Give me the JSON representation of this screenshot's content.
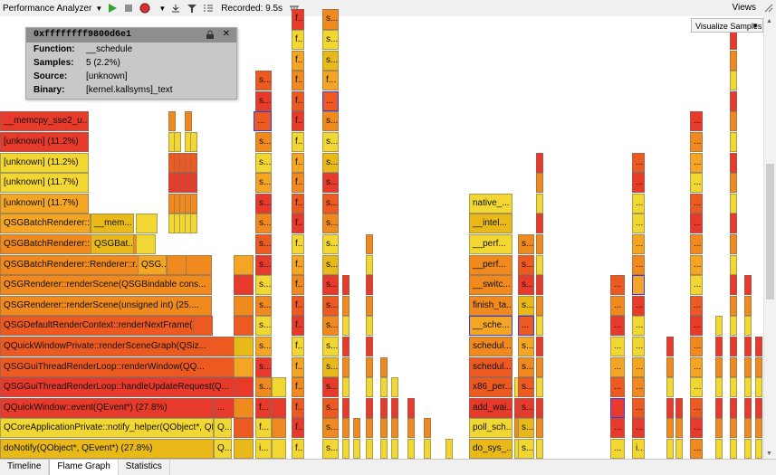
{
  "toolbar": {
    "title": "Performance Analyzer",
    "recorded": "Recorded: 9.5s",
    "views": "Views"
  },
  "colors": {
    "red": "#e83a2a",
    "orange_red": "#ec5a22",
    "orange": "#f08a1e",
    "orange_light": "#f4a524",
    "yellow": "#f2d733",
    "yellow_gold": "#e8b919",
    "tooltip_bg": "#c8c8c8",
    "selection": "#3b3bdc"
  },
  "tooltip": {
    "address": "0xffffffff9800d6e1",
    "rows": [
      {
        "key": "Function:",
        "value": "__schedule"
      },
      {
        "key": "Samples:",
        "value": "5 (2.2%)"
      },
      {
        "key": "Source:",
        "value": "[unknown]"
      },
      {
        "key": "Binary:",
        "value": "[kernel.kallsyms]_text"
      }
    ]
  },
  "visualize_button": "Visualize Samples",
  "left_column": [
    {
      "label": "__memcpy_sse2_u..."
    },
    {
      "label": "[unknown] (11.2%)"
    },
    {
      "label": "[unknown] (11.2%)"
    },
    {
      "label": "[unknown] (11.7%)"
    },
    {
      "label": "[unknown] (11.7%)"
    },
    {
      "label": "QSGBatchRenderer::..."
    },
    {
      "label": "QSGBatchRenderer::..."
    },
    {
      "label": "QSGBatchRenderer::Renderer::r..."
    },
    {
      "label": "QSGRenderer::renderScene(QSGBindable cons..."
    },
    {
      "label": "QSGRenderer::renderScene(unsigned int) (25...."
    },
    {
      "label": "QSGDefaultRenderContext::renderNextFrame(..."
    },
    {
      "label": "QQuickWindowPrivate::renderSceneGraph(QSiz..."
    },
    {
      "label": "QSGGuiThreadRenderLoop::renderWindow(QQ..."
    },
    {
      "label": "QSGGuiThreadRenderLoop::handleUpdateRequest(Q..."
    },
    {
      "label": "QQuickWindow::event(QEvent*) (27.8%)"
    },
    {
      "label": "QCoreApplicationPrivate::notify_helper(QObject*, QE..."
    },
    {
      "label": "doNotify(QObject*, QEvent*) (27.8%)"
    }
  ],
  "side_labels": {
    "mem": "__mem...",
    "qsgbat": "QSGBat...",
    "qsg": "QSG...",
    "q": "Q...",
    "ellipsis": "...",
    "s": "s...",
    "f": "f...",
    "i": "i..."
  },
  "kernel_column": [
    {
      "label": "native_..."
    },
    {
      "label": "__intel..."
    },
    {
      "label": "__perf..."
    },
    {
      "label": "__perf..."
    },
    {
      "label": "__switc..."
    },
    {
      "label": "finish_ta..."
    },
    {
      "label": "__sche..."
    },
    {
      "label": "schedul..."
    },
    {
      "label": "schedul..."
    },
    {
      "label": "x86_per..."
    },
    {
      "label": "add_wai..."
    },
    {
      "label": "poll_sch..."
    },
    {
      "label": "do_sys_..."
    }
  ],
  "tabs": [
    {
      "label": "Timeline"
    },
    {
      "label": "Flame Graph"
    },
    {
      "label": "Statistics"
    }
  ]
}
